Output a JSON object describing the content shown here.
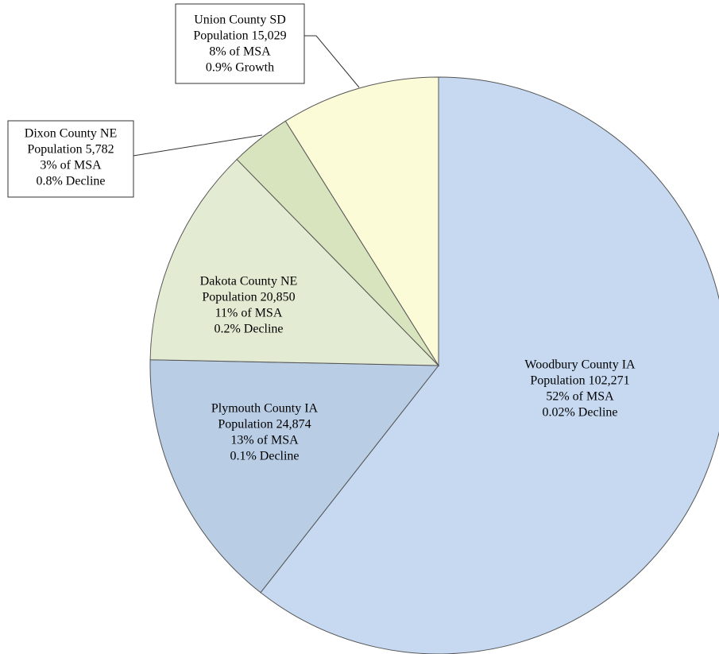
{
  "chart_data": {
    "type": "pie",
    "categories": [
      "Woodbury County IA",
      "Plymouth County IA",
      "Dakota County NE",
      "Dixon County NE",
      "Union County SD"
    ],
    "values": [
      102271,
      24874,
      20850,
      5782,
      15029
    ],
    "value_labels": [
      "Population 102,271",
      "Population 24,874",
      "Population 20,850",
      "Population 5,782",
      "Population 15,029"
    ],
    "share_labels": [
      "52% of MSA",
      "13% of MSA",
      "11% of MSA",
      "3% of MSA",
      "8% of MSA"
    ],
    "growth_labels": [
      "0.02% Decline",
      "0.1% Decline",
      "0.2% Decline",
      "0.8% Decline",
      "0.9% Growth"
    ],
    "colors": [
      "#c6d9f1",
      "#b9cde5",
      "#e4ebd3",
      "#d7e4bd",
      "#fbfbd8"
    ]
  }
}
